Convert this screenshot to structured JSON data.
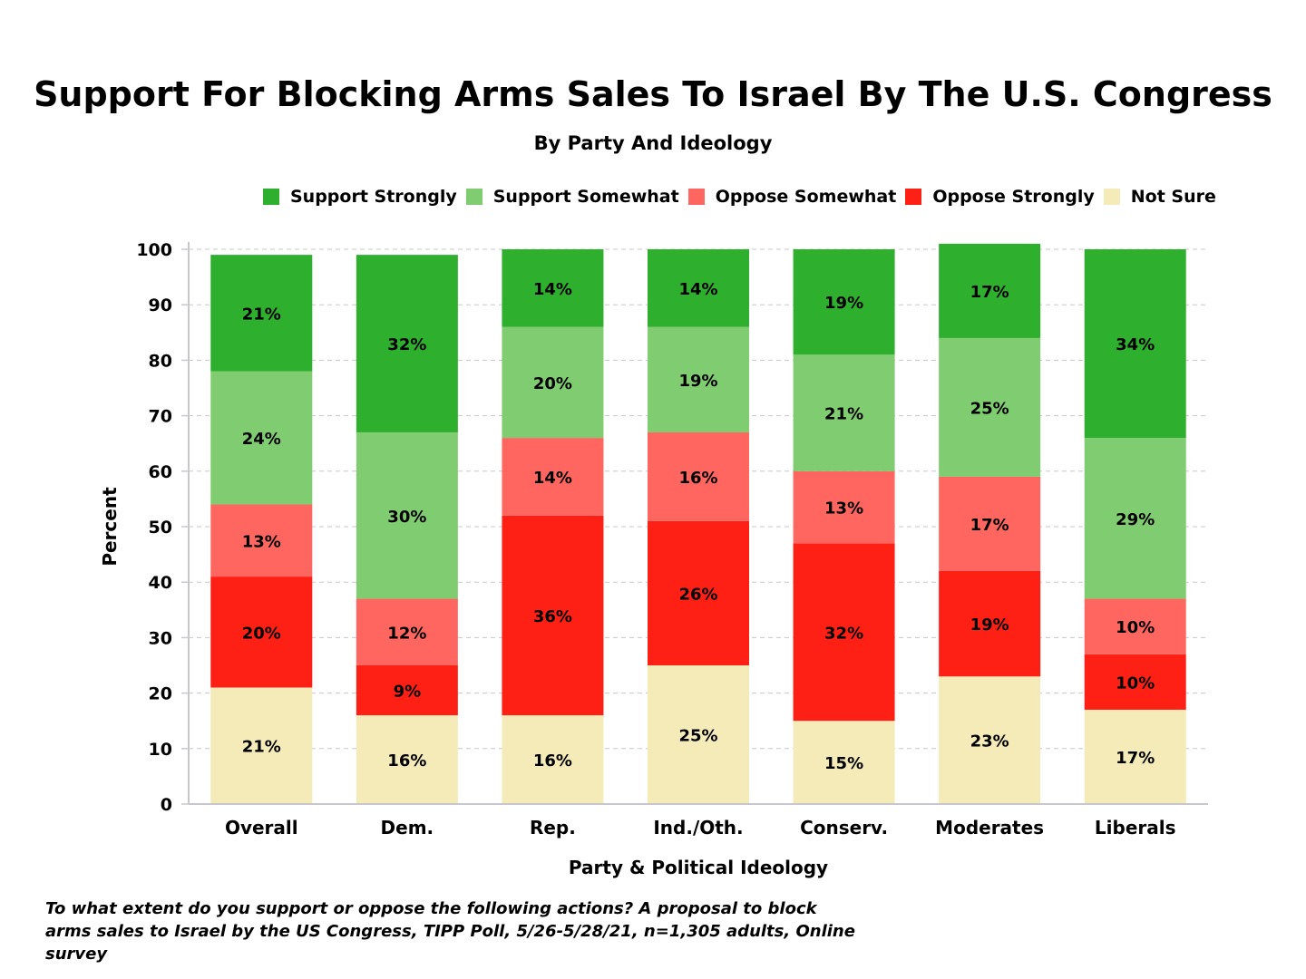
{
  "chart_data": {
    "type": "bar",
    "stacked": true,
    "title": "Support For Blocking Arms Sales To Israel By The U.S. Congress",
    "subtitle": "By Party And Ideology",
    "xlabel": "Party & Political Ideology",
    "ylabel": "Percent",
    "ylim": [
      0,
      100
    ],
    "yticks": [
      0,
      10,
      20,
      30,
      40,
      50,
      60,
      70,
      80,
      90,
      100
    ],
    "grid": true,
    "legend_position": "top",
    "categories": [
      "Overall",
      "Dem.",
      "Rep.",
      "Ind./Oth.",
      "Conserv.",
      "Moderates",
      "Liberals"
    ],
    "series": [
      {
        "name": "Not Sure",
        "color": "#f5ebb8",
        "values": [
          21,
          16,
          16,
          25,
          15,
          23,
          17
        ]
      },
      {
        "name": "Oppose Strongly",
        "color": "#ff2015",
        "values": [
          20,
          9,
          36,
          26,
          32,
          19,
          10
        ]
      },
      {
        "name": "Oppose Somewhat",
        "color": "#ff6660",
        "values": [
          13,
          12,
          14,
          16,
          13,
          17,
          10
        ]
      },
      {
        "name": "Support Somewhat",
        "color": "#80cc70",
        "values": [
          24,
          30,
          20,
          19,
          21,
          25,
          29
        ]
      },
      {
        "name": "Support Strongly",
        "color": "#2eaf2d",
        "values": [
          21,
          32,
          14,
          14,
          19,
          17,
          34
        ]
      }
    ],
    "legend_order": [
      "Support Strongly",
      "Support Somewhat",
      "Oppose Somewhat",
      "Oppose Strongly",
      "Not Sure"
    ],
    "value_label_suffix": "%"
  },
  "footnote": "To what extent do you support or oppose the following actions? A proposal to block arms sales to Israel by the US Congress, TIPP Poll, 5/26-5/28/21, n=1,305 adults, Online survey"
}
